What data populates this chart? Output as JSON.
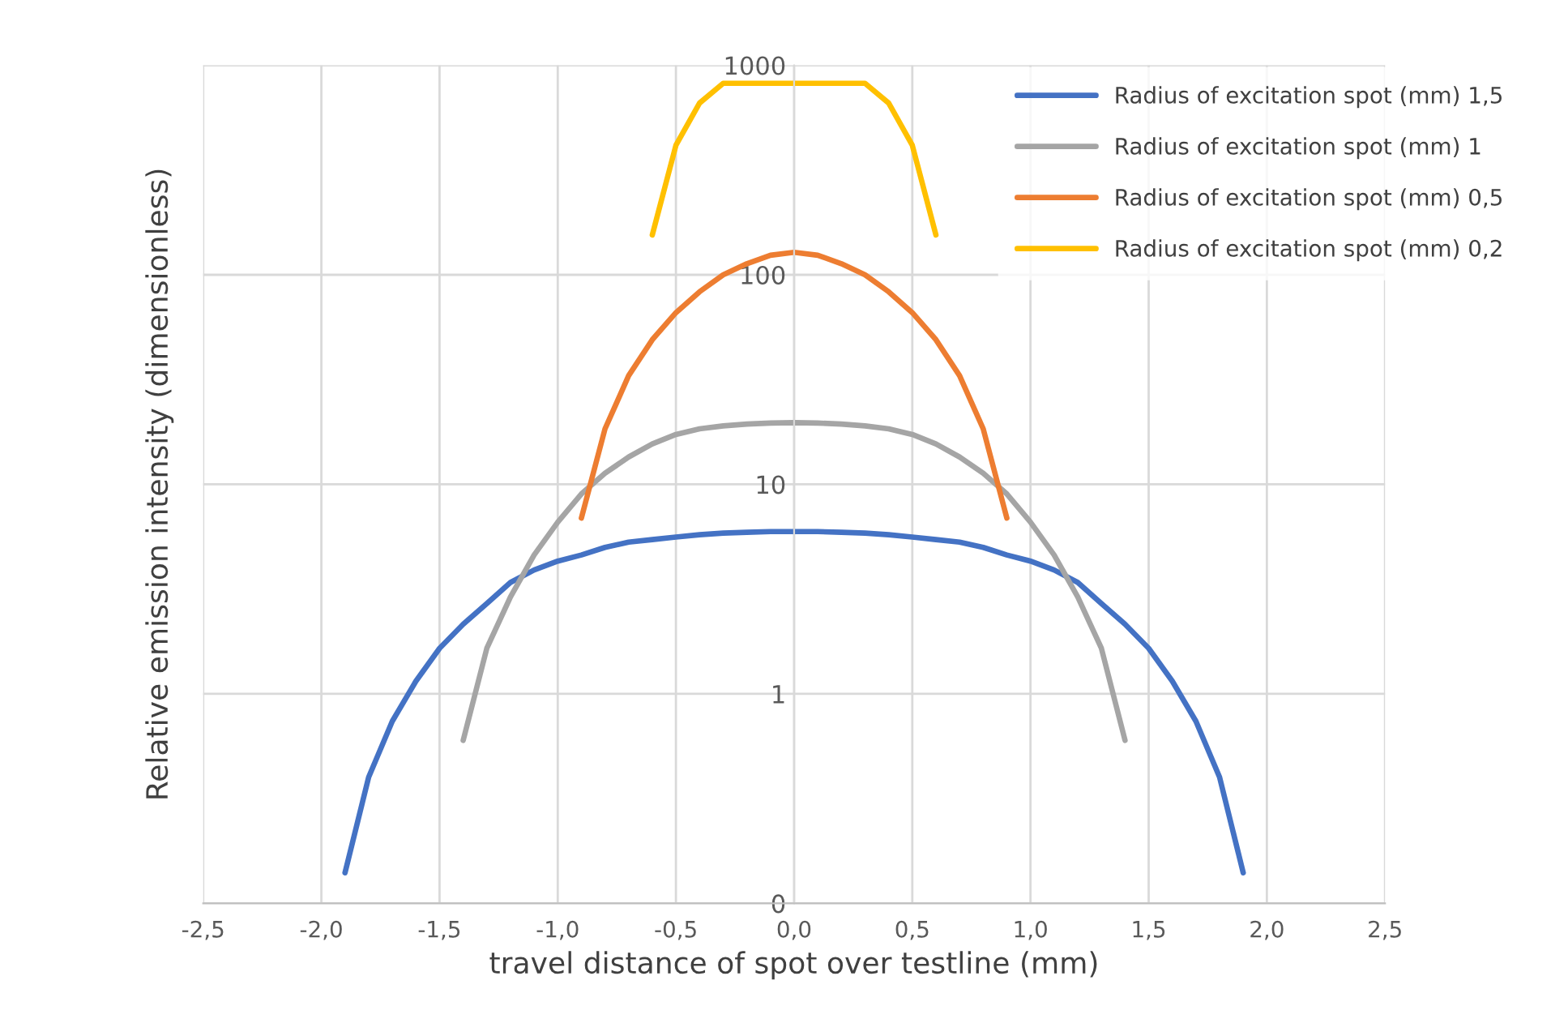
{
  "chart_data": {
    "type": "line",
    "xlabel": "travel distance of spot over testline (mm)",
    "ylabel": "Relative emission intensity (dimensionless)",
    "log": "y",
    "grid": true,
    "legend": "top right",
    "marker": "none",
    "line_style": "solid",
    "xlim": [
      -2.5,
      2.5
    ],
    "xticks": [
      {
        "value": -2.5,
        "label": "-2,5"
      },
      {
        "value": -2.0,
        "label": "-2,0"
      },
      {
        "value": -1.5,
        "label": "-1,5"
      },
      {
        "value": -1.0,
        "label": "-1,0"
      },
      {
        "value": -0.5,
        "label": "-0,5"
      },
      {
        "value": 0.0,
        "label": "0,0"
      },
      {
        "value": 0.5,
        "label": "0,5"
      },
      {
        "value": 1.0,
        "label": "1,0"
      },
      {
        "value": 1.5,
        "label": "1,5"
      },
      {
        "value": 2.0,
        "label": "2,0"
      },
      {
        "value": 2.5,
        "label": "2,5"
      }
    ],
    "ylim": [
      0.1,
      1000
    ],
    "yticks": [
      {
        "value": 0.1,
        "label": "0"
      },
      1,
      10,
      100,
      1000
    ],
    "series": [
      {
        "name": "Radius of excitation spot (mm) 1,5",
        "color": "#4472c4",
        "x": [
          -1.9,
          -1.8,
          -1.7,
          -1.6,
          -1.5,
          -1.4,
          -1.3,
          -1.2,
          -1.1,
          -1.0,
          -0.9,
          -0.8,
          -0.7,
          -0.6,
          -0.5,
          -0.4,
          -0.3,
          -0.2,
          -0.1,
          0.0,
          0.1,
          0.2,
          0.3,
          0.4,
          0.5,
          0.6,
          0.7,
          0.8,
          0.9,
          1.0,
          1.1,
          1.2,
          1.3,
          1.4,
          1.5,
          1.6,
          1.7,
          1.8,
          1.9
        ],
        "values": [
          0.14,
          0.4,
          0.74,
          1.15,
          1.65,
          2.15,
          2.7,
          3.4,
          3.9,
          4.3,
          4.6,
          5.0,
          5.3,
          5.45,
          5.6,
          5.75,
          5.85,
          5.9,
          5.95,
          5.95,
          5.95,
          5.9,
          5.85,
          5.75,
          5.6,
          5.45,
          5.3,
          5.0,
          4.6,
          4.3,
          3.9,
          3.4,
          2.7,
          2.15,
          1.65,
          1.15,
          0.74,
          0.4,
          0.14
        ]
      },
      {
        "name": "Radius of excitation spot (mm) 1",
        "color": "#a5a5a5",
        "x": [
          -1.4,
          -1.3,
          -1.2,
          -1.1,
          -1.0,
          -0.9,
          -0.8,
          -0.7,
          -0.6,
          -0.5,
          -0.4,
          -0.3,
          -0.2,
          -0.1,
          0.0,
          0.1,
          0.2,
          0.3,
          0.4,
          0.5,
          0.6,
          0.7,
          0.8,
          0.9,
          1.0,
          1.1,
          1.2,
          1.3,
          1.4
        ],
        "values": [
          0.6,
          1.65,
          2.9,
          4.6,
          6.6,
          9.0,
          11.3,
          13.5,
          15.6,
          17.3,
          18.4,
          19.0,
          19.4,
          19.6,
          19.7,
          19.6,
          19.4,
          19.0,
          18.4,
          17.3,
          15.6,
          13.5,
          11.3,
          9.0,
          6.6,
          4.6,
          2.9,
          1.65,
          0.6
        ]
      },
      {
        "name": "Radius of excitation spot (mm) 0,5",
        "color": "#ed7d31",
        "x": [
          -0.9,
          -0.8,
          -0.7,
          -0.6,
          -0.5,
          -0.4,
          -0.3,
          -0.2,
          -0.1,
          0.0,
          0.1,
          0.2,
          0.3,
          0.4,
          0.5,
          0.6,
          0.7,
          0.8,
          0.9
        ],
        "values": [
          6.9,
          18.4,
          33,
          49,
          66,
          83,
          100,
          113,
          124,
          128,
          124,
          113,
          100,
          83,
          66,
          49,
          33,
          18.4,
          6.9
        ]
      },
      {
        "name": "Radius of excitation spot (mm) 0,2",
        "color": "#ffc000",
        "x": [
          -0.6,
          -0.5,
          -0.4,
          -0.3,
          -0.2,
          -0.1,
          0.0,
          0.1,
          0.2,
          0.3,
          0.4,
          0.5,
          0.6
        ],
        "values": [
          155,
          415,
          660,
          820,
          820,
          820,
          820,
          820,
          820,
          820,
          660,
          415,
          155
        ]
      }
    ]
  }
}
